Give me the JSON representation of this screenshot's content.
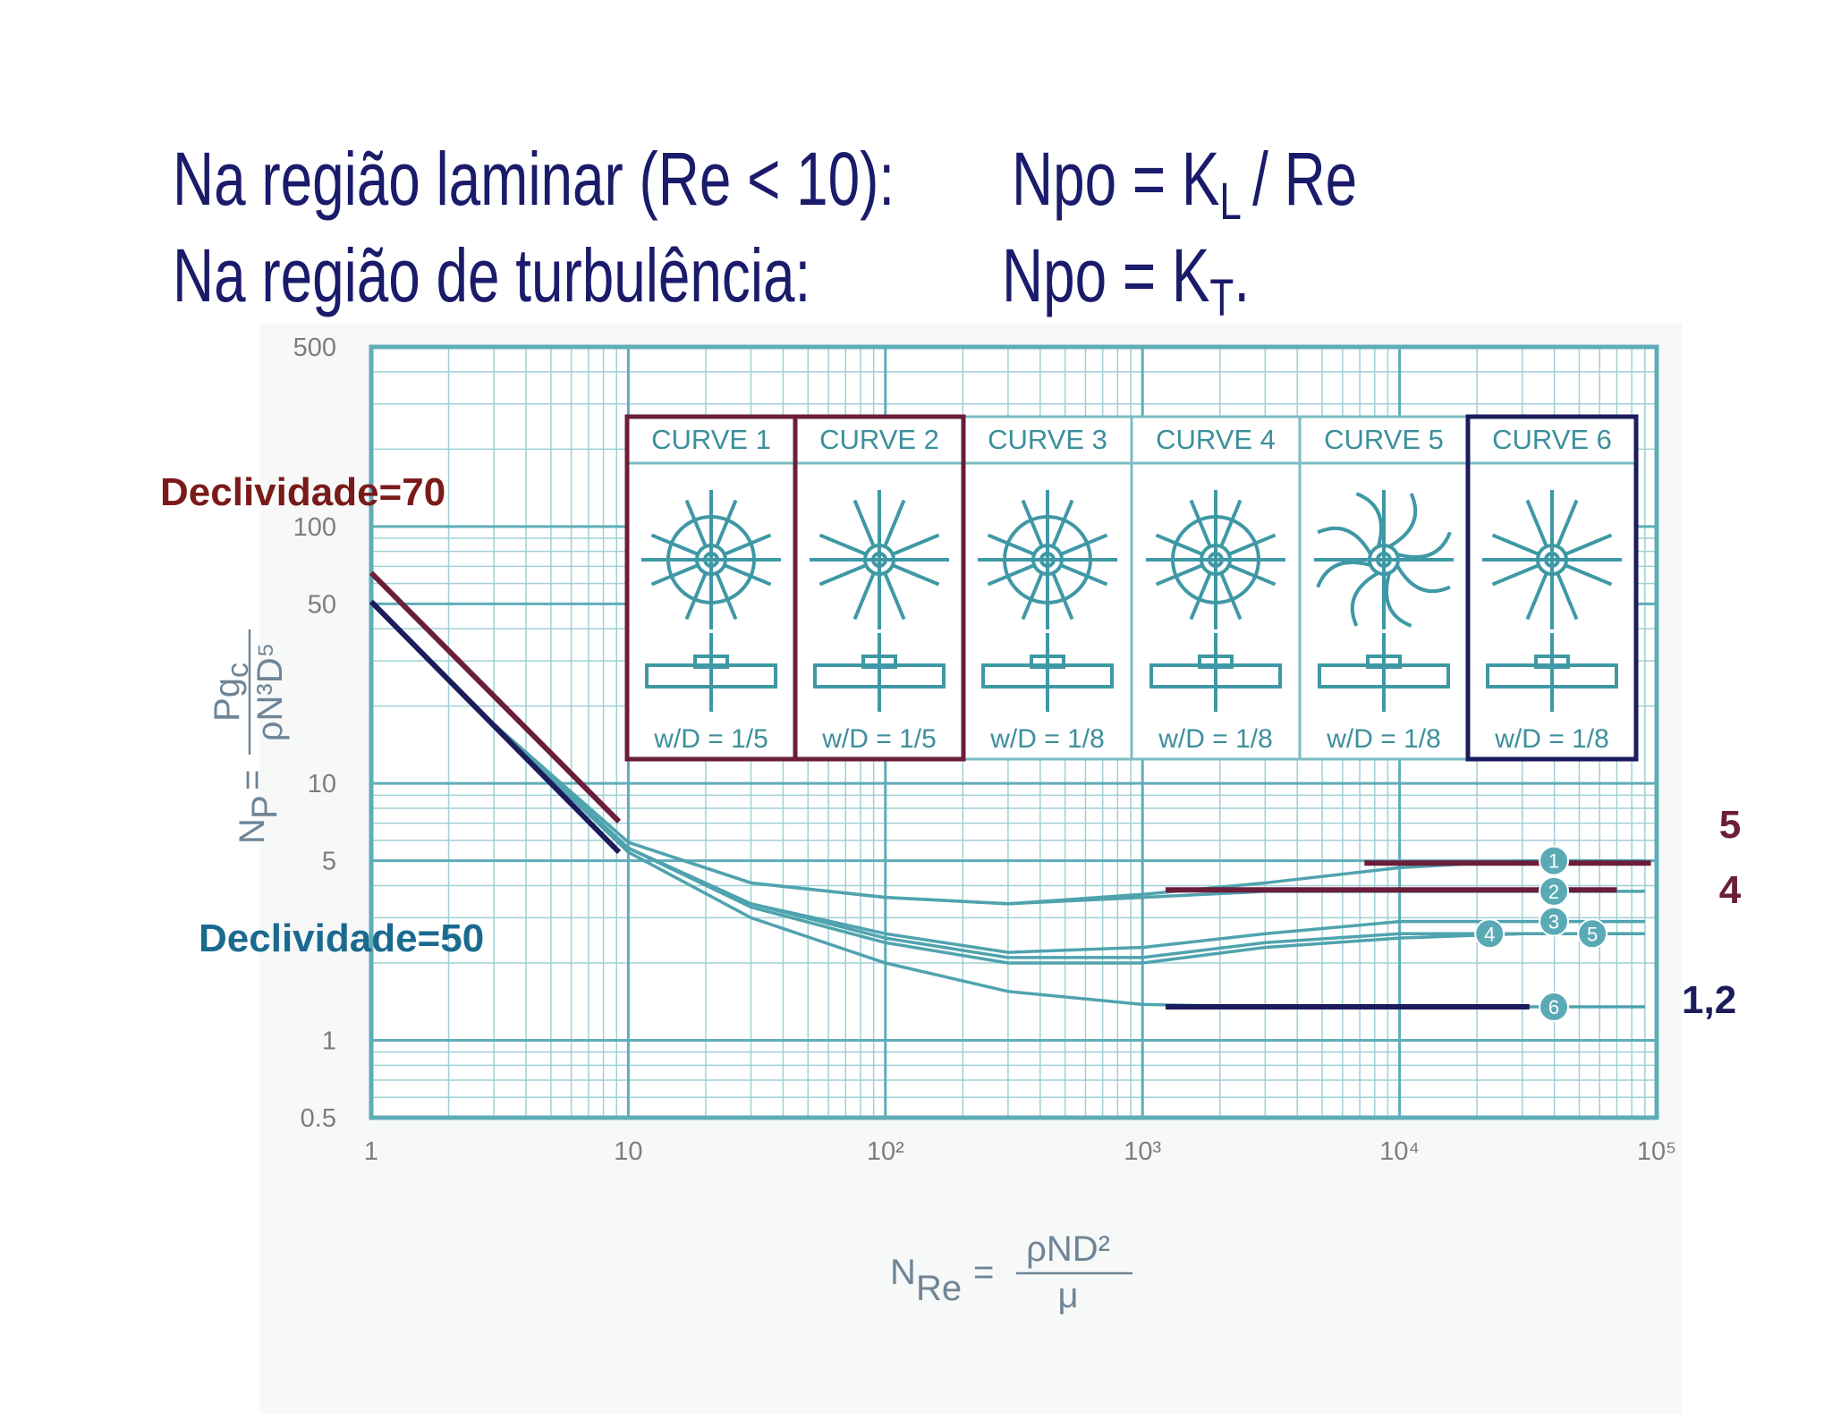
{
  "slide": {
    "line1": {
      "text": "Na região laminar  (Re < 10):",
      "formula": "Npo = K",
      "sub": "L",
      "tail": "/ Re"
    },
    "line2": {
      "text": "Na região de turbulência:",
      "formula": "Npo = K",
      "sub": "T",
      "tail": "."
    }
  },
  "chart_data": {
    "type": "line",
    "log_x": true,
    "log_y": true,
    "grid": true,
    "line_color": "#4fa3ae",
    "x": [
      1,
      3,
      10,
      30,
      100,
      300,
      1000,
      3000,
      10000,
      30000,
      90000
    ],
    "series": [
      {
        "name": "1",
        "color": "#4fa3ae",
        "values": [
          51,
          17,
          5.9,
          4.1,
          3.6,
          3.4,
          3.7,
          4.1,
          4.7,
          5.0,
          5.0
        ]
      },
      {
        "name": "2",
        "color": "#4fa3ae",
        "values": [
          51,
          17,
          5.9,
          4.1,
          3.6,
          3.4,
          3.6,
          3.8,
          3.8,
          3.8,
          3.8
        ]
      },
      {
        "name": "3",
        "color": "#4fa3ae",
        "values": [
          51,
          17,
          5.6,
          3.4,
          2.6,
          2.2,
          2.3,
          2.6,
          2.9,
          2.9,
          2.9
        ]
      },
      {
        "name": "4",
        "color": "#4fa3ae",
        "values": [
          51,
          17,
          5.6,
          3.4,
          2.5,
          2.1,
          2.1,
          2.4,
          2.6,
          2.6,
          2.6
        ]
      },
      {
        "name": "5",
        "color": "#4fa3ae",
        "values": [
          51,
          17,
          5.6,
          3.3,
          2.4,
          2.0,
          2.0,
          2.3,
          2.5,
          2.6,
          2.6
        ]
      },
      {
        "name": "6",
        "color": "#4fa3ae",
        "values": [
          51,
          17,
          5.4,
          3.0,
          2.0,
          1.55,
          1.38,
          1.35,
          1.35,
          1.35,
          1.35
        ]
      }
    ],
    "xlim": [
      1,
      100000
    ],
    "xticks": [
      1,
      10,
      {
        "value": 100,
        "label": "10²"
      },
      {
        "value": 1000,
        "label": "10³"
      },
      {
        "value": 10000,
        "label": "10⁴"
      },
      {
        "value": 100000,
        "label": "10⁵"
      }
    ],
    "ylim": [
      0.5,
      500
    ],
    "yticks": [
      500,
      100,
      50,
      10,
      5,
      1,
      0.5
    ],
    "y_label": {
      "symbol": "N",
      "sub": "P",
      "eq": "=",
      "num": "Pg",
      "num_sub": "c",
      "den": "ρN³D⁵"
    },
    "x_label": {
      "symbol": "N",
      "sub": "Re",
      "eq": "=",
      "num": "ρND²",
      "den": "μ"
    },
    "impellers": [
      {
        "label": "CURVE 1",
        "ratio": "w/D = 1/5",
        "highlight": "#6b1d3a"
      },
      {
        "label": "CURVE 2",
        "ratio": "w/D = 1/5",
        "highlight": "#6b1d3a"
      },
      {
        "label": "CURVE 3",
        "ratio": "w/D = 1/8"
      },
      {
        "label": "CURVE 4",
        "ratio": "w/D = 1/8"
      },
      {
        "label": "CURVE 5",
        "ratio": "w/D = 1/8"
      },
      {
        "label": "CURVE 6",
        "ratio": "w/D = 1/8",
        "highlight": "#1c1c5c"
      }
    ],
    "annotations": [
      {
        "text": "Declividade=70",
        "color": "#7b1a1a",
        "line_color": "#6b1d3a",
        "x": [
          1,
          9.2
        ],
        "values": [
          66,
          7.1
        ]
      },
      {
        "text": "Declividade=50",
        "color": "#1a6a8f",
        "line_color": "#1c1c5c",
        "x": [
          1,
          9.2
        ],
        "values": [
          51,
          5.4
        ]
      },
      {
        "text": "5",
        "color": "#6b1d3a",
        "line_color": "#6b1d3a",
        "x": [
          7300,
          95000
        ],
        "values": [
          4.9,
          4.9
        ]
      },
      {
        "text": "4",
        "color": "#6b1d3a",
        "line_color": "#6b1d3a",
        "x": [
          1230,
          70000
        ],
        "values": [
          3.85,
          3.85
        ]
      },
      {
        "text": "1,2",
        "color": "#1c1c5c",
        "line_color": "#1c1c5c",
        "x": [
          1230,
          32000
        ],
        "values": [
          1.35,
          1.35
        ]
      }
    ]
  }
}
